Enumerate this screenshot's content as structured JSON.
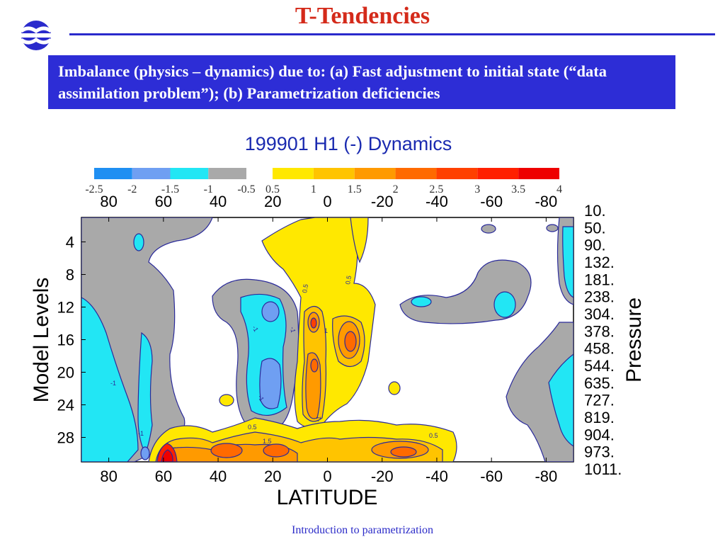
{
  "slide": {
    "title": "T-Tendencies",
    "banner_text": "Imbalance (physics – dynamics) due to: (a) Fast adjustment to initial state (“data assimilation problem”); (b) Parametrization deficiencies",
    "footer": "Introduction to parametrization",
    "accent_color": "#d42a1a",
    "banner_color": "#2d2dd6"
  },
  "chart_data": {
    "type": "heatmap",
    "title": "199901 H1  (-) Dynamics",
    "xlabel": "LATITUDE",
    "ylabel_left": "Model Levels",
    "ylabel_right": "Pressure",
    "x_ticks_top": [
      "80",
      "60",
      "40",
      "20",
      "0",
      "-20",
      "-40",
      "-60",
      "-80"
    ],
    "x_ticks_bottom": [
      "80",
      "60",
      "40",
      "20",
      "0",
      "-20",
      "-40",
      "-60",
      "-80"
    ],
    "y_ticks_left": [
      "4",
      "8",
      "12",
      "16",
      "20",
      "24",
      "28"
    ],
    "y_ticks_right": [
      "10.",
      "50.",
      "90.",
      "132.",
      "181.",
      "238.",
      "304.",
      "378.",
      "458.",
      "544.",
      "635.",
      "727.",
      "819.",
      "904.",
      "973.",
      "1011."
    ],
    "xlim": [
      90,
      -90
    ],
    "ylim_levels": [
      1,
      31
    ],
    "legend": {
      "negative": {
        "labels": [
          "-2.5",
          "-2",
          "-1.5",
          "-1",
          "-0.5"
        ],
        "colors": [
          "#1f8ff2",
          "#6f9ff2",
          "#22e6f4",
          "#a9a9a9"
        ]
      },
      "positive": {
        "labels": [
          "0.5",
          "1",
          "1.5",
          "2",
          "2.5",
          "3",
          "3.5",
          "4"
        ],
        "colors": [
          "#ffe800",
          "#ffc400",
          "#ff9a00",
          "#ff6a00",
          "#ff4000",
          "#ff2000",
          "#ee0000"
        ]
      }
    },
    "contour_labels": [
      "0.5",
      "0.5",
      "-1",
      "-1",
      "1",
      "-1",
      "-1",
      "-1",
      "0.5",
      "1.5",
      "0.5",
      "-1"
    ],
    "colors": {
      "gray": "#a9a9a9",
      "cyan": "#22e6f4",
      "blue": "#6f9ff2",
      "yellow": "#ffe800",
      "gold": "#ffc400",
      "orange": "#ff9a00",
      "dark_orange": "#ff6a00",
      "red": "#ff2000",
      "deep_red": "#ee0000",
      "contour": "#2a2a9a"
    }
  }
}
